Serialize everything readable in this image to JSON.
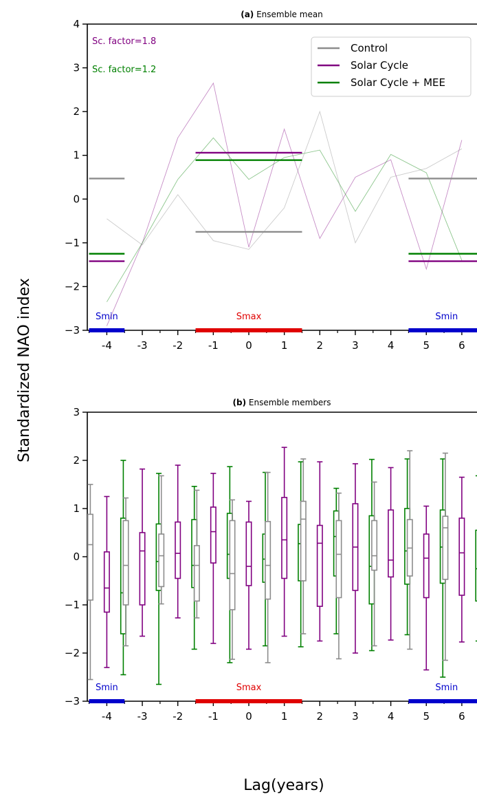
{
  "colors": {
    "control": "#8c8c8c",
    "solar": "#800080",
    "mee": "#008000",
    "smin": "#0000cc",
    "smax": "#e00000"
  },
  "figure": {
    "ylabel": "Standardized NAO index",
    "xlabel": "Lag(years)"
  },
  "chart_data": [
    {
      "panel": "a",
      "type": "line",
      "title_letter": "(a)",
      "title": "Ensemble mean",
      "ylim": [
        -3,
        4
      ],
      "yticks": [
        -3,
        -2,
        -1,
        0,
        1,
        2,
        3,
        4
      ],
      "x_ticks": [
        -4,
        -3,
        -2,
        -1,
        0,
        1,
        2,
        3,
        4,
        5,
        6
      ],
      "annotations": [
        "Sc. factor=1.8",
        "Sc. factor=1.2"
      ],
      "legend": {
        "position": "top-right",
        "entries": [
          "Control",
          "Solar Cycle",
          "Solar Cycle + MEE"
        ]
      },
      "phases": [
        {
          "label": "Smin",
          "x_start": -4.5,
          "x_end": -3.5,
          "kind": "min"
        },
        {
          "label": "Smax",
          "x_start": -1.5,
          "x_end": 1.5,
          "kind": "max"
        },
        {
          "label": "Smin",
          "x_start": 4.5,
          "x_end": 6.8,
          "kind": "min"
        }
      ],
      "lines": [
        {
          "series": "Solar Cycle",
          "x": [
            -4,
            -3,
            -2,
            -1,
            0,
            1,
            2,
            3,
            4,
            5,
            6
          ],
          "y": [
            -2.9,
            -1.0,
            1.4,
            2.65,
            -1.1,
            1.6,
            -0.9,
            0.5,
            0.9,
            -1.6,
            1.35
          ]
        },
        {
          "series": "Solar Cycle + MEE",
          "x": [
            -4,
            -3,
            -2,
            -1,
            0,
            1,
            2,
            3,
            4,
            5,
            6
          ],
          "y": [
            -2.35,
            -1.0,
            0.45,
            1.4,
            0.45,
            0.95,
            1.12,
            -0.28,
            1.02,
            0.6,
            -1.4
          ]
        },
        {
          "series": "Control",
          "x": [
            -4,
            -3,
            -2,
            -1,
            0,
            1,
            2,
            3,
            4,
            5,
            6
          ],
          "y": [
            -0.45,
            -1.05,
            0.1,
            -0.95,
            -1.15,
            -0.2,
            2.0,
            -1.0,
            0.5,
            0.7,
            1.15
          ]
        }
      ],
      "means": [
        {
          "series": "Control",
          "x_start": -4.5,
          "x_end": -3.5,
          "y": 0.47
        },
        {
          "series": "Control",
          "x_start": -1.5,
          "x_end": 1.5,
          "y": -0.75
        },
        {
          "series": "Control",
          "x_start": 4.5,
          "x_end": 6.8,
          "y": 0.47
        },
        {
          "series": "Solar Cycle",
          "x_start": -4.5,
          "x_end": -3.5,
          "y": -1.42
        },
        {
          "series": "Solar Cycle",
          "x_start": -1.5,
          "x_end": 1.5,
          "y": 1.06
        },
        {
          "series": "Solar Cycle",
          "x_start": 4.5,
          "x_end": 6.8,
          "y": -1.42
        },
        {
          "series": "Solar Cycle + MEE",
          "x_start": -4.5,
          "x_end": -3.5,
          "y": -1.25
        },
        {
          "series": "Solar Cycle + MEE",
          "x_start": -1.5,
          "x_end": 1.5,
          "y": 0.89
        },
        {
          "series": "Solar Cycle + MEE",
          "x_start": 4.5,
          "x_end": 6.8,
          "y": -1.25
        }
      ]
    },
    {
      "panel": "b",
      "type": "box",
      "title_letter": "(b)",
      "title": "Ensemble members",
      "ylim": [
        -3,
        3
      ],
      "yticks": [
        -3,
        -2,
        -1,
        0,
        1,
        2,
        3
      ],
      "x_ticks": [
        -4,
        -3,
        -2,
        -1,
        0,
        1,
        2,
        3,
        4,
        5,
        6
      ],
      "phases": [
        {
          "label": "Smin",
          "x_start": -4.5,
          "x_end": -3.5,
          "kind": "min"
        },
        {
          "label": "Smax",
          "x_start": -1.5,
          "x_end": 1.5,
          "kind": "max"
        },
        {
          "label": "Smin",
          "x_start": 4.5,
          "x_end": 6.8,
          "kind": "min"
        }
      ],
      "series": [
        "Control",
        "Solar Cycle",
        "Solar Cycle + MEE"
      ],
      "boxes": [
        {
          "x": -4,
          "Control": [
            -2.55,
            -0.9,
            0.25,
            0.88,
            1.5
          ],
          "Solar Cycle": [
            -2.3,
            -1.15,
            -0.65,
            0.1,
            1.25
          ],
          "Solar Cycle + MEE": [
            -2.45,
            -1.6,
            -0.75,
            0.8,
            2.0
          ]
        },
        {
          "x": -3,
          "Control": [
            -1.85,
            -1.0,
            -0.18,
            0.75,
            1.22
          ],
          "Solar Cycle": [
            -1.65,
            -1.0,
            0.12,
            0.5,
            1.82
          ],
          "Solar Cycle + MEE": [
            -2.65,
            -0.7,
            -0.1,
            0.68,
            1.73
          ]
        },
        {
          "x": -2,
          "Control": [
            -0.98,
            -0.62,
            0.02,
            0.47,
            1.68
          ],
          "Solar Cycle": [
            -1.27,
            -0.45,
            0.07,
            0.72,
            1.9
          ],
          "Solar Cycle + MEE": [
            -1.92,
            -0.64,
            -0.18,
            0.77,
            1.46
          ]
        },
        {
          "x": -1,
          "Control": [
            -1.27,
            -0.92,
            -0.18,
            0.23,
            1.38
          ],
          "Solar Cycle": [
            -1.8,
            -0.13,
            0.52,
            1.03,
            1.73
          ],
          "Solar Cycle + MEE": [
            -2.2,
            -0.45,
            0.05,
            0.9,
            1.87
          ]
        },
        {
          "x": 0,
          "Control": [
            -2.13,
            -1.1,
            -0.35,
            0.75,
            1.18
          ],
          "Solar Cycle": [
            -1.92,
            -0.6,
            -0.2,
            0.72,
            1.15
          ],
          "Solar Cycle + MEE": [
            -1.85,
            -0.53,
            -0.05,
            0.47,
            1.75
          ]
        },
        {
          "x": 1,
          "Control": [
            -2.2,
            -0.88,
            -0.18,
            0.73,
            1.75
          ],
          "Solar Cycle": [
            -1.65,
            -0.45,
            0.35,
            1.23,
            2.27
          ],
          "Solar Cycle + MEE": [
            -1.87,
            -0.5,
            0.27,
            0.67,
            1.97
          ]
        },
        {
          "x": 2,
          "Control": [
            -1.6,
            -0.5,
            0.78,
            1.15,
            2.03
          ],
          "Solar Cycle": [
            -1.75,
            -1.03,
            0.28,
            0.65,
            1.97
          ],
          "Solar Cycle + MEE": [
            -1.6,
            -0.4,
            0.42,
            0.95,
            1.42
          ]
        },
        {
          "x": 3,
          "Control": [
            -2.12,
            -0.85,
            0.05,
            0.75,
            1.32
          ],
          "Solar Cycle": [
            -2.0,
            -0.7,
            0.2,
            1.1,
            1.93
          ],
          "Solar Cycle + MEE": [
            -1.95,
            -0.98,
            -0.2,
            0.85,
            2.02
          ]
        },
        {
          "x": 4,
          "Control": [
            -1.85,
            -0.28,
            0.02,
            0.75,
            1.55
          ],
          "Solar Cycle": [
            -1.73,
            -0.42,
            -0.07,
            0.97,
            1.85
          ],
          "Solar Cycle + MEE": [
            -1.62,
            -0.57,
            0.12,
            1.0,
            2.03
          ]
        },
        {
          "x": 5,
          "Control": [
            -1.92,
            -0.4,
            0.18,
            0.77,
            2.2
          ],
          "Solar Cycle": [
            -2.35,
            -0.85,
            -0.03,
            0.47,
            1.05
          ],
          "Solar Cycle + MEE": [
            -2.5,
            -0.55,
            0.2,
            0.97,
            2.03
          ]
        },
        {
          "x": 6,
          "Control": [
            -2.15,
            -0.47,
            0.6,
            0.84,
            2.15
          ],
          "Solar Cycle": [
            -1.77,
            -0.8,
            0.08,
            0.8,
            1.65
          ],
          "Solar Cycle + MEE": [
            -1.75,
            -0.92,
            -0.25,
            0.55,
            1.68
          ]
        }
      ]
    }
  ]
}
